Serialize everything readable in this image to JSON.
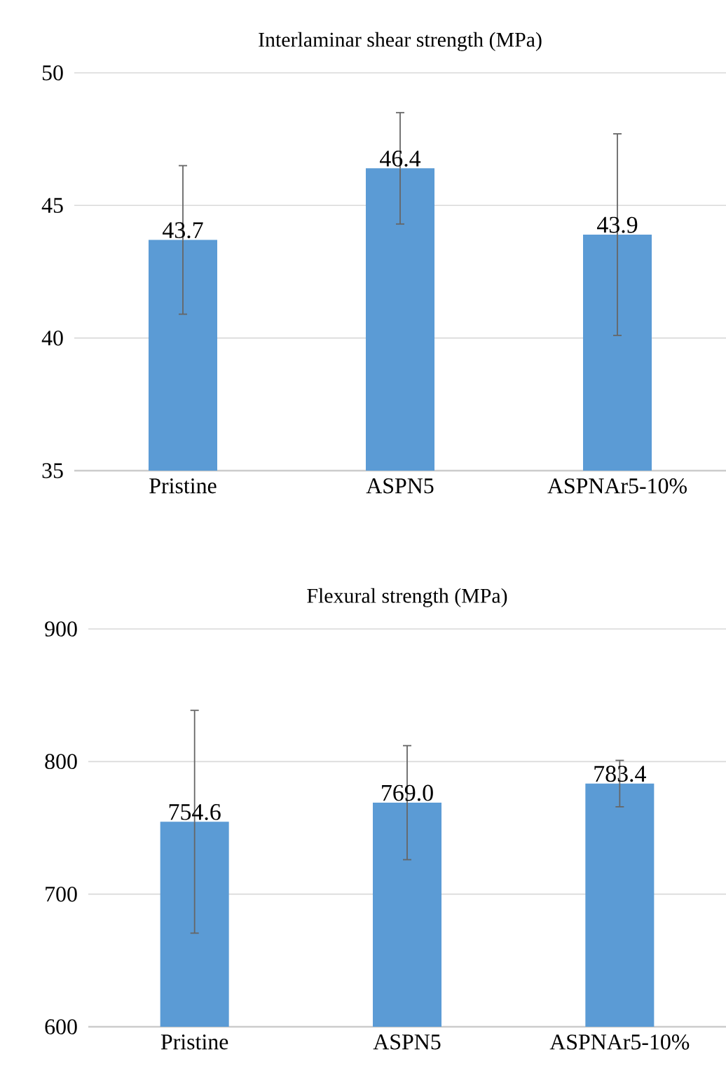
{
  "chart_data": [
    {
      "type": "bar",
      "title": "Interlaminar shear strength (MPa)",
      "categories": [
        "Pristine",
        "ASPN5",
        "ASPNAr5-10%"
      ],
      "values": [
        43.7,
        46.4,
        43.9
      ],
      "value_labels": [
        "43.7",
        "46.4",
        "43.9"
      ],
      "errors": [
        2.8,
        2.1,
        3.8
      ],
      "color": "#5b9bd5",
      "ylim": [
        35,
        50
      ],
      "yticks": [
        35,
        40,
        45,
        50
      ],
      "grid": "y"
    },
    {
      "type": "bar",
      "title": "Flexural strength (MPa)",
      "categories": [
        "Pristine",
        "ASPN5",
        "ASPNAr5-10%"
      ],
      "values": [
        754.6,
        769.0,
        783.4
      ],
      "value_labels": [
        "754.6",
        "769.0",
        "783.4"
      ],
      "errors": [
        84,
        43,
        17.5
      ],
      "color": "#5b9bd5",
      "ylim": [
        600,
        900
      ],
      "yticks": [
        600,
        700,
        800,
        900
      ],
      "grid": "y"
    }
  ]
}
